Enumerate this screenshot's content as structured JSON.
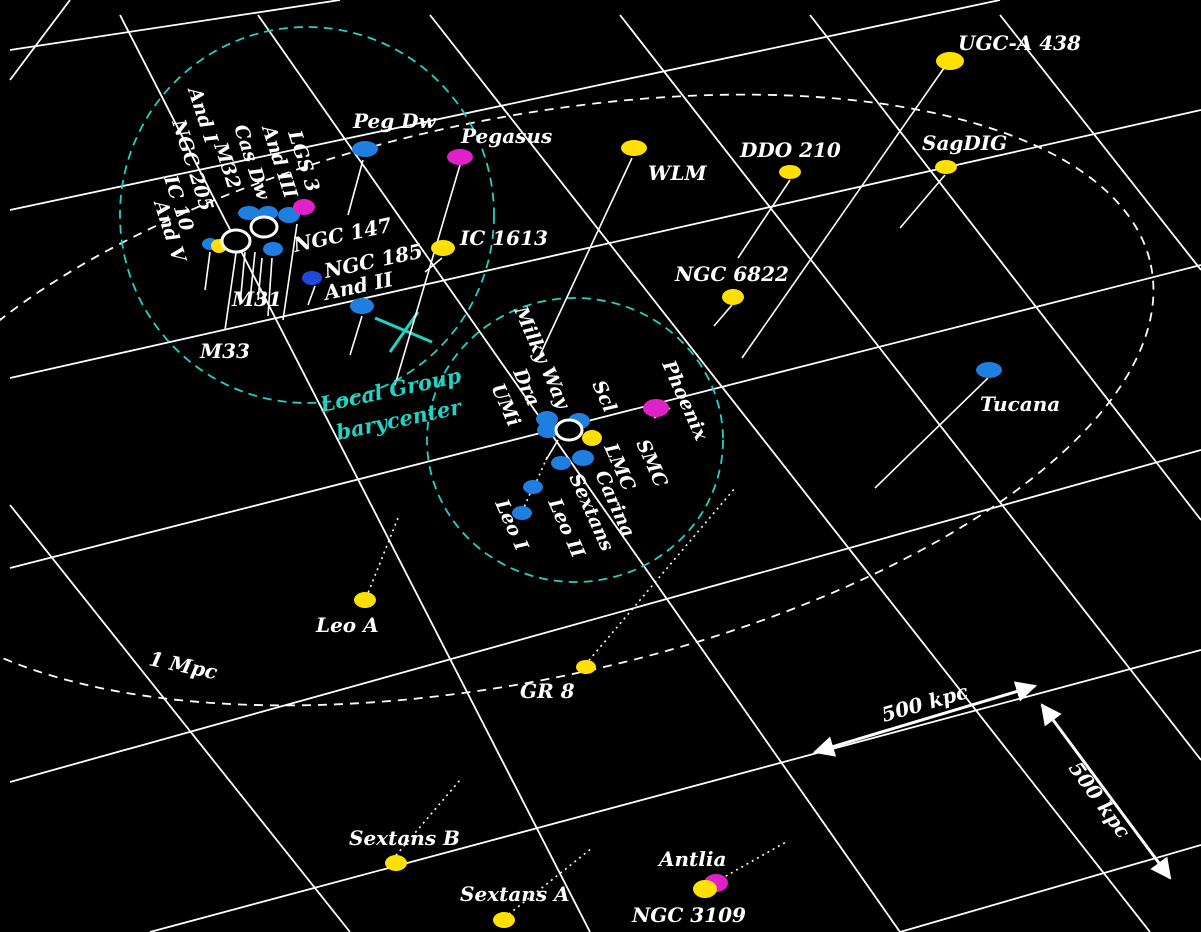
{
  "colors": {
    "background": "#000000",
    "grid": "#ffffff",
    "spiral": "#1e7fe0",
    "irregular": "#ffe000",
    "magenta": "#e020c8",
    "cyan": "#22d3c5"
  },
  "labels": {
    "barycenter_line1": "Local Group",
    "barycenter_line2": "barycenter",
    "ring_1mpc": "1 Mpc",
    "scale_h": "500 kpc",
    "scale_v": "500 kpc"
  },
  "galaxies": [
    {
      "name": "Peg Dw",
      "color": "spiral"
    },
    {
      "name": "Pegasus",
      "color": "magenta"
    },
    {
      "name": "WLM",
      "color": "irregular"
    },
    {
      "name": "DDO 210",
      "color": "irregular"
    },
    {
      "name": "UGC-A 438",
      "color": "irregular"
    },
    {
      "name": "SagDIG",
      "color": "irregular"
    },
    {
      "name": "IC 1613",
      "color": "irregular"
    },
    {
      "name": "NGC 6822",
      "color": "irregular"
    },
    {
      "name": "Tucana",
      "color": "spiral"
    },
    {
      "name": "Phoenix",
      "color": "magenta"
    },
    {
      "name": "Leo A",
      "color": "irregular"
    },
    {
      "name": "GR 8",
      "color": "irregular"
    },
    {
      "name": "Sextans B",
      "color": "irregular"
    },
    {
      "name": "Sextans A",
      "color": "irregular"
    },
    {
      "name": "Antlia",
      "color": "magenta"
    },
    {
      "name": "NGC 3109",
      "color": "irregular"
    },
    {
      "name": "M31",
      "color": "spiral"
    },
    {
      "name": "M33",
      "color": "spiral"
    },
    {
      "name": "And I",
      "color": "spiral"
    },
    {
      "name": "NGC 205",
      "color": "spiral"
    },
    {
      "name": "IC 10",
      "color": "irregular"
    },
    {
      "name": "And V",
      "color": "spiral"
    },
    {
      "name": "M32",
      "color": "spiral"
    },
    {
      "name": "Cas Dw",
      "color": "spiral"
    },
    {
      "name": "And III",
      "color": "spiral"
    },
    {
      "name": "LGS 3",
      "color": "magenta"
    },
    {
      "name": "NGC 147",
      "color": "spiral"
    },
    {
      "name": "NGC 185",
      "color": "spiral"
    },
    {
      "name": "And II",
      "color": "spiral"
    },
    {
      "name": "Milky Way",
      "color": "spiral"
    },
    {
      "name": "Dra",
      "color": "spiral"
    },
    {
      "name": "UMi",
      "color": "spiral"
    },
    {
      "name": "Scl",
      "color": "spiral"
    },
    {
      "name": "SMC",
      "color": "irregular"
    },
    {
      "name": "LMC",
      "color": "irregular"
    },
    {
      "name": "Carina",
      "color": "spiral"
    },
    {
      "name": "Sextans",
      "color": "spiral"
    },
    {
      "name": "Leo II",
      "color": "spiral"
    },
    {
      "name": "Leo I",
      "color": "spiral"
    }
  ]
}
